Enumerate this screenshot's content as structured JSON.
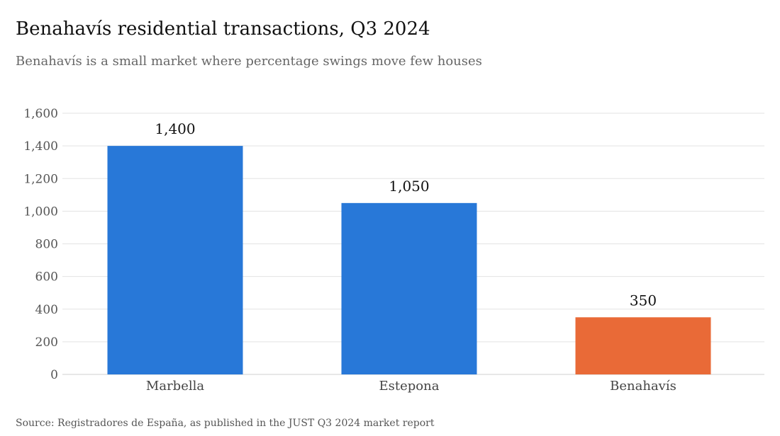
{
  "header": {
    "title": "Benahavís residential transactions, Q3 2024",
    "subtitle": "Benahavís is a small market where percentage swings move few houses"
  },
  "footer": {
    "source": "Source: Registradores de España, as published in the JUST Q3 2024 market report"
  },
  "chart_data": {
    "type": "bar",
    "title": "Benahavís residential transactions, Q3 2024",
    "subtitle": "Benahavís is a small market where percentage swings move few houses",
    "xlabel": "",
    "ylabel": "",
    "categories": [
      "Marbella",
      "Estepona",
      "Benahavís"
    ],
    "values": [
      1400,
      1050,
      350
    ],
    "data_labels": [
      "1,400",
      "1,050",
      "350"
    ],
    "colors": [
      "#2878d8",
      "#2878d8",
      "#e96a37"
    ],
    "ylim": [
      0,
      1600
    ],
    "yticks": [
      0,
      200,
      400,
      600,
      800,
      1000,
      1200,
      1400,
      1600
    ],
    "ytick_labels": [
      "0",
      "200",
      "400",
      "600",
      "800",
      "1,000",
      "1,200",
      "1,400",
      "1,600"
    ],
    "grid": true,
    "legend": "none"
  }
}
